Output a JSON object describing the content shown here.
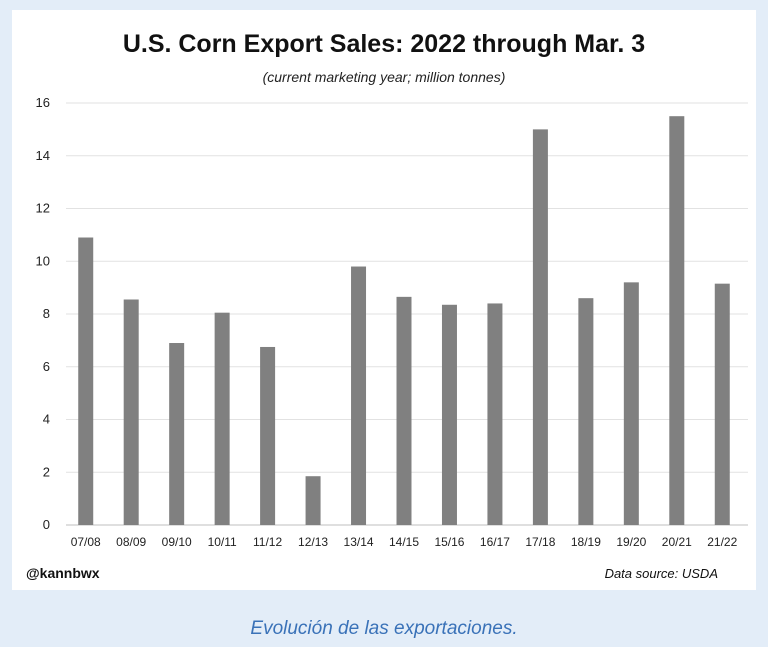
{
  "chart_data": {
    "type": "bar",
    "title": "U.S. Corn Export Sales: 2022 through Mar. 3",
    "subtitle": "(current marketing year; million tonnes)",
    "xlabel": "",
    "ylabel": "",
    "categories": [
      "07/08",
      "08/09",
      "09/10",
      "10/11",
      "11/12",
      "12/13",
      "13/14",
      "14/15",
      "15/16",
      "16/17",
      "17/18",
      "18/19",
      "19/20",
      "20/21",
      "21/22"
    ],
    "values": [
      10.9,
      8.55,
      6.9,
      8.05,
      6.75,
      1.85,
      9.8,
      8.65,
      8.35,
      8.4,
      15.0,
      8.6,
      9.2,
      15.5,
      9.15
    ],
    "ylim": [
      0,
      16
    ],
    "yticks": [
      0,
      2,
      4,
      6,
      8,
      10,
      12,
      14,
      16
    ],
    "grid": true,
    "bar_color": "#808080"
  },
  "attribution": {
    "handle": "@kannbwx",
    "source": "Data source: USDA"
  },
  "caption": "Evolución de las exportaciones."
}
